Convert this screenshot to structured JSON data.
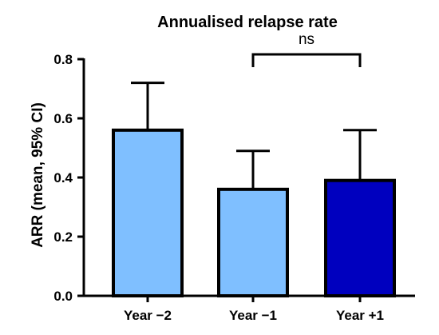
{
  "chart_data": {
    "type": "bar",
    "title": "Annualised relapse rate",
    "xlabel": "",
    "ylabel": "ARR (mean, 95% CI)",
    "categories": [
      "Year −2",
      "Year −1",
      "Year +1"
    ],
    "values": [
      0.56,
      0.36,
      0.39
    ],
    "ci_upper": [
      0.72,
      0.49,
      0.56
    ],
    "bar_colors": [
      "#7fbfff",
      "#7fbfff",
      "#0000bf"
    ],
    "ylim": [
      0,
      0.8
    ],
    "yticks": [
      0.0,
      0.2,
      0.4,
      0.6,
      0.8
    ],
    "ytick_labels": [
      "0.0",
      "0.2",
      "0.4",
      "0.6",
      "0.8"
    ],
    "grid": false,
    "annotations": [
      {
        "text": "ns",
        "from_category": 1,
        "to_category": 2
      }
    ]
  }
}
